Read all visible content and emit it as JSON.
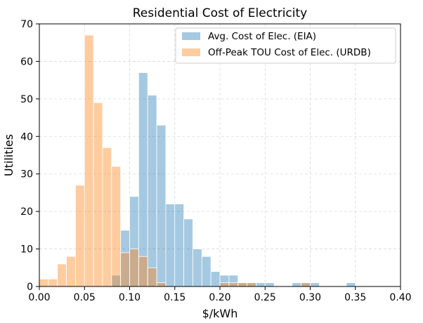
{
  "chart_data": {
    "type": "bar",
    "title": "Residential Cost of Electricity",
    "xlabel": "$/kWh",
    "ylabel": "Utilities",
    "xlim": [
      0,
      0.4
    ],
    "ylim": [
      0,
      70
    ],
    "xticks": [
      "0.00",
      "0.05",
      "0.10",
      "0.15",
      "0.20",
      "0.25",
      "0.30",
      "0.35",
      "0.40"
    ],
    "xtick_values": [
      0,
      0.05,
      0.1,
      0.15,
      0.2,
      0.25,
      0.3,
      0.35,
      0.4
    ],
    "yticks": [
      "0",
      "10",
      "20",
      "30",
      "40",
      "50",
      "60",
      "70"
    ],
    "ytick_values": [
      0,
      10,
      20,
      30,
      40,
      50,
      60,
      70
    ],
    "grid": true,
    "legend_position": "top-right",
    "bin_width": 0.01,
    "series": [
      {
        "name": "Avg. Cost of Elec. (EIA)",
        "color": "#1f77b4",
        "bins": [
          {
            "x": 0.08,
            "count": 3
          },
          {
            "x": 0.09,
            "count": 15
          },
          {
            "x": 0.1,
            "count": 24
          },
          {
            "x": 0.11,
            "count": 57
          },
          {
            "x": 0.12,
            "count": 51
          },
          {
            "x": 0.13,
            "count": 43
          },
          {
            "x": 0.14,
            "count": 22
          },
          {
            "x": 0.15,
            "count": 22
          },
          {
            "x": 0.16,
            "count": 18
          },
          {
            "x": 0.17,
            "count": 10
          },
          {
            "x": 0.18,
            "count": 8
          },
          {
            "x": 0.19,
            "count": 4
          },
          {
            "x": 0.2,
            "count": 3
          },
          {
            "x": 0.21,
            "count": 3
          },
          {
            "x": 0.22,
            "count": 1
          },
          {
            "x": 0.23,
            "count": 1
          },
          {
            "x": 0.24,
            "count": 1
          },
          {
            "x": 0.25,
            "count": 1
          },
          {
            "x": 0.28,
            "count": 1
          },
          {
            "x": 0.29,
            "count": 1
          },
          {
            "x": 0.3,
            "count": 1
          },
          {
            "x": 0.34,
            "count": 1
          }
        ]
      },
      {
        "name": "Off-Peak TOU Cost of Elec. (URDB)",
        "color": "#ff7f0e",
        "bins": [
          {
            "x": 0.0,
            "count": 2
          },
          {
            "x": 0.01,
            "count": 2
          },
          {
            "x": 0.02,
            "count": 6
          },
          {
            "x": 0.03,
            "count": 8
          },
          {
            "x": 0.04,
            "count": 27
          },
          {
            "x": 0.05,
            "count": 67
          },
          {
            "x": 0.06,
            "count": 49
          },
          {
            "x": 0.07,
            "count": 37
          },
          {
            "x": 0.08,
            "count": 32
          },
          {
            "x": 0.09,
            "count": 9
          },
          {
            "x": 0.1,
            "count": 10
          },
          {
            "x": 0.11,
            "count": 8
          },
          {
            "x": 0.12,
            "count": 5
          },
          {
            "x": 0.13,
            "count": 1
          },
          {
            "x": 0.2,
            "count": 1
          },
          {
            "x": 0.21,
            "count": 1
          },
          {
            "x": 0.22,
            "count": 1
          },
          {
            "x": 0.23,
            "count": 1
          },
          {
            "x": 0.29,
            "count": 1
          }
        ]
      }
    ]
  }
}
